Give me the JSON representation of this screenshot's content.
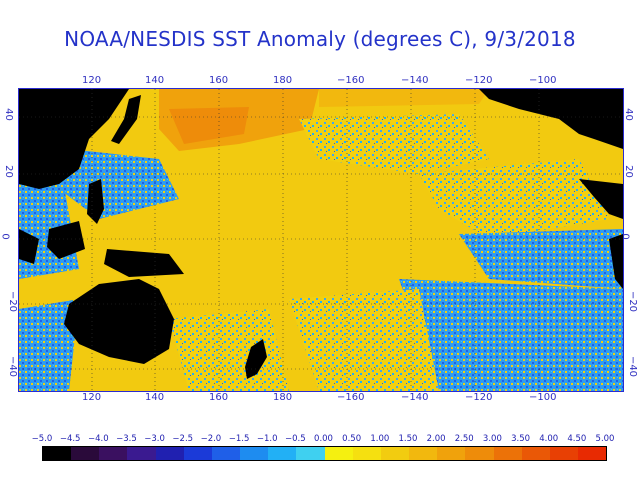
{
  "title": "NOAA/NESDIS SST Anomaly (degrees C), 9/3/2018",
  "map": {
    "lon_labels": [
      "120",
      "140",
      "160",
      "180",
      "−160",
      "−140",
      "−120",
      "−100"
    ],
    "lat_labels_left": [
      "40",
      "20",
      "0",
      "−20",
      "−40"
    ],
    "lat_labels_right": [
      "40",
      "20",
      "0",
      "−20",
      "−40"
    ],
    "land_color": "#000000",
    "gridlines": "dotted"
  },
  "colorbar": {
    "ticks": [
      "−5.0",
      "−4.5",
      "−4.0",
      "−3.5",
      "−3.0",
      "−2.5",
      "−2.0",
      "−1.5",
      "−1.0",
      "−0.5",
      "0.00",
      "0.50",
      "1.00",
      "1.50",
      "2.00",
      "2.50",
      "3.00",
      "3.50",
      "4.00",
      "4.50",
      "5.00"
    ],
    "colors": [
      "#000000",
      "#2a0a3a",
      "#3a1060",
      "#3a1a90",
      "#2020b0",
      "#1b3ad8",
      "#1f5fe8",
      "#1e8cf0",
      "#22b0f5",
      "#3fd0f0",
      "#f5f010",
      "#f5e010",
      "#f2cc10",
      "#f2b80e",
      "#f0a20c",
      "#ee8c0a",
      "#ec7208",
      "#ea5806",
      "#e84004",
      "#e82a02"
    ]
  }
}
